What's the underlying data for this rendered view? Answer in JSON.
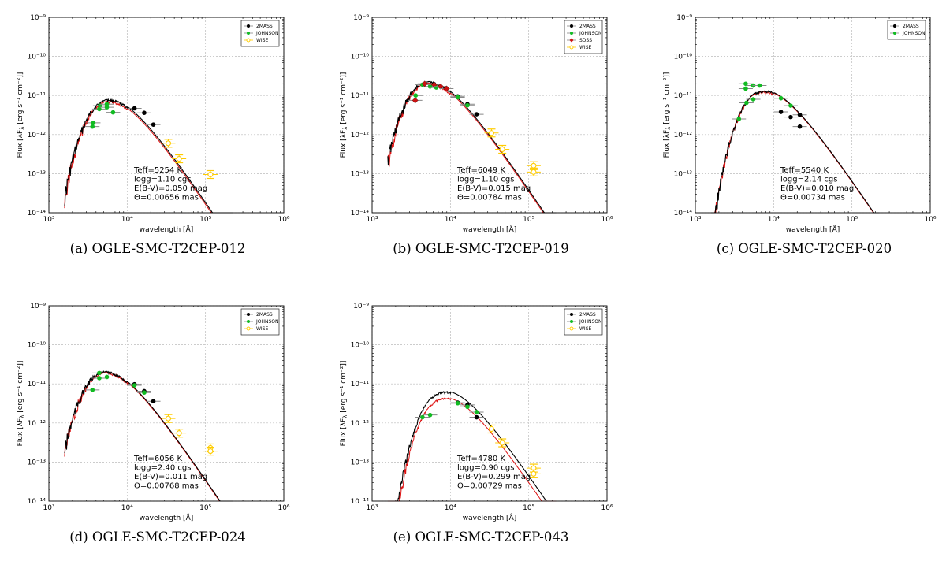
{
  "figure": {
    "x_axis_label": "wavelength [Å]",
    "y_axis_label": "Flux [λF",
    "y_axis_label_sub": "λ",
    "y_axis_label_units": " [erg s⁻¹ cm⁻²]]",
    "y_tick_labels": [
      "10⁻⁹",
      "10⁻¹⁰",
      "10⁻¹¹",
      "10⁻¹²",
      "10⁻¹³",
      "10⁻¹⁴"
    ],
    "x_tick_labels": [
      "10³",
      "10⁴",
      "10⁵",
      "10⁶"
    ]
  },
  "chart_data": [
    {
      "type": "scatter",
      "caption": "(a) OGLE-SMC-T2CEP-012",
      "xlim": [
        1000,
        1000000
      ],
      "ylim": [
        1e-14,
        1e-09
      ],
      "xscale": "log",
      "yscale": "log",
      "grid": true,
      "legend_position": "top-right",
      "legend": [
        "2MASS",
        "JOHNSON",
        "WISE"
      ],
      "params": {
        "teff": "Teff=5254 K",
        "logg": "logg=1.10 cgs",
        "ebv": "E(B-V)=0.050 mag",
        "theta": "Θ=0.00656 mas"
      },
      "model_peak": {
        "wavelength": 5800,
        "flux_black": 8e-12,
        "flux_red": 7.2e-12
      },
      "series": [
        {
          "name": "2MASS",
          "color": "#000000",
          "marker": "filled",
          "points": [
            [
              12400,
              4.7e-12
            ],
            [
              16500,
              3.6e-12
            ],
            [
              21600,
              1.8e-12
            ]
          ]
        },
        {
          "name": "JOHNSON",
          "color": "#11bb22",
          "marker": "filled",
          "points": [
            [
              3600,
              1.6e-12
            ],
            [
              3700,
              2e-12
            ],
            [
              4400,
              4.5e-12
            ],
            [
              4500,
              5.5e-12
            ],
            [
              5500,
              6e-12
            ],
            [
              5500,
              5e-12
            ],
            [
              6600,
              3.7e-12
            ]
          ]
        },
        {
          "name": "WISE",
          "color": "#ffcc00",
          "marker": "open",
          "points": [
            [
              33500,
              6e-13
            ],
            [
              46000,
              2.4e-13
            ],
            [
              115600,
              9.5e-14
            ]
          ]
        }
      ]
    },
    {
      "type": "scatter",
      "caption": "(b) OGLE-SMC-T2CEP-019",
      "xlim": [
        1000,
        1000000
      ],
      "ylim": [
        1e-14,
        1e-09
      ],
      "xscale": "log",
      "yscale": "log",
      "grid": true,
      "legend_position": "top-right",
      "legend": [
        "2MASS",
        "JOHNSON",
        "SDSS",
        "WISE"
      ],
      "params": {
        "teff": "Teff=6049 K",
        "logg": "logg=1.10 cgs",
        "ebv": "E(B-V)=0.015 mag",
        "theta": "Θ=0.00784 mas"
      },
      "model_peak": {
        "wavelength": 5200,
        "flux_black": 2.3e-11,
        "flux_red": 2.1e-11
      },
      "series": [
        {
          "name": "2MASS",
          "color": "#000000",
          "marker": "filled",
          "points": [
            [
              12400,
              9.5e-12
            ],
            [
              16500,
              6e-12
            ],
            [
              21600,
              3.3e-12
            ]
          ]
        },
        {
          "name": "JOHNSON",
          "color": "#11bb22",
          "marker": "filled",
          "points": [
            [
              3600,
              1e-11
            ],
            [
              4400,
              1.9e-11
            ],
            [
              5500,
              1.7e-11
            ],
            [
              6600,
              1.6e-11
            ],
            [
              12400,
              9e-12
            ],
            [
              16500,
              5.6e-12
            ]
          ]
        },
        {
          "name": "SDSS",
          "color": "#cc1111",
          "marker": "filled",
          "points": [
            [
              3550,
              7.5e-12
            ],
            [
              4700,
              2e-11
            ],
            [
              6200,
              1.9e-11
            ],
            [
              7500,
              1.7e-11
            ],
            [
              8900,
              1.5e-11
            ]
          ]
        },
        {
          "name": "WISE",
          "color": "#ffcc00",
          "marker": "open",
          "points": [
            [
              33500,
              1.1e-12
            ],
            [
              46000,
              4.2e-13
            ],
            [
              115600,
              1.6e-13
            ],
            [
              115600,
              1.1e-13
            ]
          ]
        }
      ]
    },
    {
      "type": "scatter",
      "caption": "(c) OGLE-SMC-T2CEP-020",
      "xlim": [
        1000,
        1000000
      ],
      "ylim": [
        1e-14,
        1e-09
      ],
      "xscale": "log",
      "yscale": "log",
      "grid": true,
      "legend_position": "top-right",
      "legend": [
        "2MASS",
        "JOHNSON"
      ],
      "params": {
        "teff": "Teff=5540 K",
        "logg": "logg=2.14 cgs",
        "ebv": "E(B-V)=0.010 mag",
        "theta": "Θ=0.00734 mas"
      },
      "model_peak": {
        "wavelength": 7500,
        "flux_black": 1.35e-11,
        "flux_red": 1.3e-11
      },
      "series": [
        {
          "name": "2MASS",
          "color": "#000000",
          "marker": "filled",
          "points": [
            [
              12400,
              3.8e-12
            ],
            [
              16500,
              2.8e-12
            ],
            [
              21600,
              1.6e-12
            ],
            [
              21600,
              3.2e-12
            ]
          ]
        },
        {
          "name": "JOHNSON",
          "color": "#11bb22",
          "marker": "filled",
          "points": [
            [
              3600,
              2.5e-12
            ],
            [
              4400,
              2e-11
            ],
            [
              4400,
              1.5e-11
            ],
            [
              4500,
              6.5e-12
            ],
            [
              5500,
              1.8e-11
            ],
            [
              5500,
              8e-12
            ],
            [
              6600,
              1.8e-11
            ],
            [
              12400,
              8.5e-12
            ],
            [
              16500,
              5.5e-12
            ]
          ]
        }
      ]
    },
    {
      "type": "scatter",
      "caption": "(d) OGLE-SMC-T2CEP-024",
      "xlim": [
        1000,
        1000000
      ],
      "ylim": [
        1e-14,
        1e-09
      ],
      "xscale": "log",
      "yscale": "log",
      "grid": true,
      "legend_position": "top-right",
      "legend": [
        "2MASS",
        "JOHNSON",
        "WISE"
      ],
      "params": {
        "teff": "Teff=6056 K",
        "logg": "logg=2.40 cgs",
        "ebv": "E(B-V)=0.011 mag",
        "theta": "Θ=0.00768 mas"
      },
      "model_peak": {
        "wavelength": 5200,
        "flux_black": 2.1e-11,
        "flux_red": 2e-11
      },
      "series": [
        {
          "name": "2MASS",
          "color": "#000000",
          "marker": "filled",
          "points": [
            [
              12400,
              9.8e-12
            ],
            [
              16500,
              6.5e-12
            ],
            [
              21600,
              3.6e-12
            ]
          ]
        },
        {
          "name": "JOHNSON",
          "color": "#11bb22",
          "marker": "filled",
          "points": [
            [
              3600,
              7e-12
            ],
            [
              4400,
              1.4e-11
            ],
            [
              5500,
              1.5e-11
            ],
            [
              4400,
              1.9e-11
            ],
            [
              12400,
              9.2e-12
            ],
            [
              16500,
              6e-12
            ]
          ]
        },
        {
          "name": "WISE",
          "color": "#ffcc00",
          "marker": "open",
          "points": [
            [
              33500,
              1.3e-12
            ],
            [
              46000,
              5.5e-13
            ],
            [
              115600,
              2.3e-13
            ],
            [
              115600,
              1.9e-13
            ]
          ]
        }
      ]
    },
    {
      "type": "scatter",
      "caption": "(e) OGLE-SMC-T2CEP-043",
      "xlim": [
        1000,
        1000000
      ],
      "ylim": [
        1e-14,
        1e-09
      ],
      "xscale": "log",
      "yscale": "log",
      "grid": true,
      "legend_position": "top-right",
      "legend": [
        "2MASS",
        "JOHNSON",
        "WISE"
      ],
      "params": {
        "teff": "Teff=4780 K",
        "logg": "logg=0.90 cgs",
        "ebv": "E(B-V)=0.299 mag",
        "theta": "Θ=0.00729 mas"
      },
      "model_peak": {
        "wavelength": 8500,
        "flux_black": 6.5e-12,
        "flux_red": 4.4e-12
      },
      "series": [
        {
          "name": "2MASS",
          "color": "#000000",
          "marker": "filled",
          "points": [
            [
              12400,
              3.3e-12
            ],
            [
              16500,
              2.9e-12
            ],
            [
              21600,
              1.4e-12
            ]
          ]
        },
        {
          "name": "JOHNSON",
          "color": "#11bb22",
          "marker": "filled",
          "points": [
            [
              4400,
              1.4e-12
            ],
            [
              5500,
              1.6e-12
            ],
            [
              12400,
              3.2e-12
            ],
            [
              16500,
              2.6e-12
            ],
            [
              21600,
              1.9e-12
            ]
          ]
        },
        {
          "name": "WISE",
          "color": "#ffcc00",
          "marker": "open",
          "points": [
            [
              33500,
              7e-13
            ],
            [
              46000,
              3.1e-13
            ],
            [
              115600,
              7e-14
            ],
            [
              115600,
              5e-14
            ]
          ]
        }
      ]
    }
  ]
}
